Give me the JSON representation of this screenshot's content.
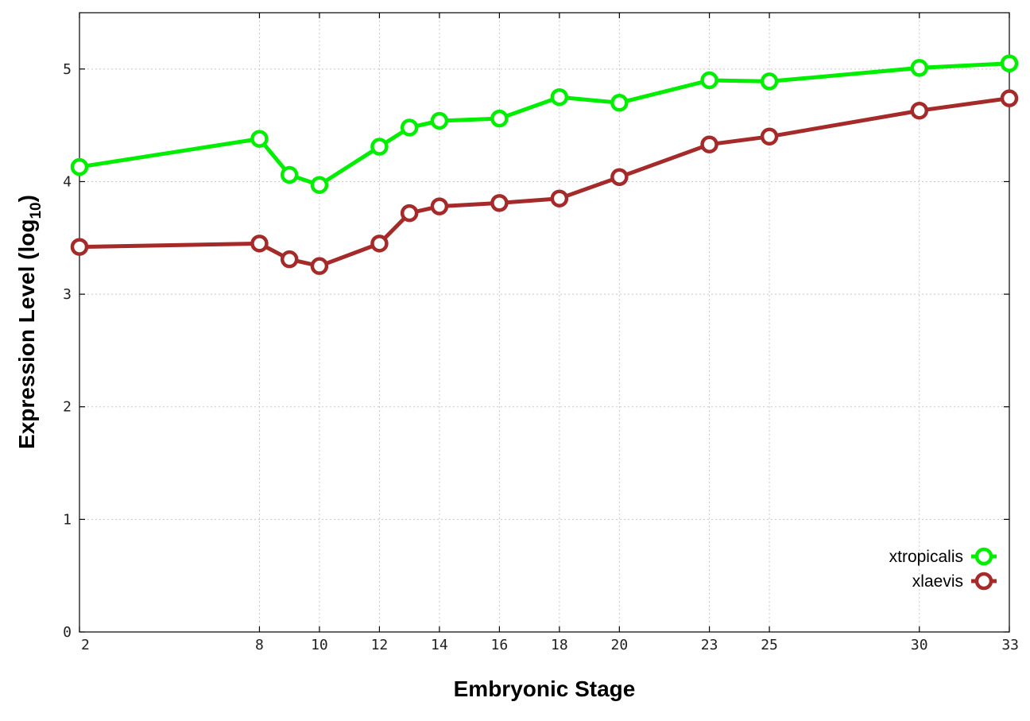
{
  "chart_data": {
    "type": "line",
    "title": "",
    "xlabel": "Embryonic Stage",
    "ylabel_main": "Expression Level (log",
    "ylabel_sub": "10",
    "ylabel_close": ")",
    "x_ticks": [
      2,
      8,
      10,
      12,
      14,
      16,
      18,
      20,
      23,
      25,
      30,
      33
    ],
    "y_ticks": [
      0,
      1,
      2,
      3,
      4,
      5
    ],
    "xlim": [
      2,
      33
    ],
    "ylim": [
      0,
      5.5
    ],
    "grid": true,
    "legend_position": "bottom-right",
    "series": [
      {
        "name": "xtropicalis",
        "color": "#00ee00",
        "x": [
          2,
          8,
          9,
          10,
          12,
          13,
          14,
          16,
          18,
          20,
          23,
          25,
          30,
          33
        ],
        "y": [
          4.13,
          4.38,
          4.06,
          3.97,
          4.31,
          4.48,
          4.54,
          4.56,
          4.75,
          4.7,
          4.9,
          4.89,
          5.01,
          5.05
        ]
      },
      {
        "name": "xlaevis",
        "color": "#a52a2a",
        "x": [
          2,
          8,
          9,
          10,
          12,
          13,
          14,
          16,
          18,
          20,
          23,
          25,
          30,
          33
        ],
        "y": [
          3.42,
          3.45,
          3.31,
          3.25,
          3.45,
          3.72,
          3.78,
          3.81,
          3.85,
          4.04,
          4.33,
          4.4,
          4.63,
          4.74
        ]
      }
    ]
  }
}
